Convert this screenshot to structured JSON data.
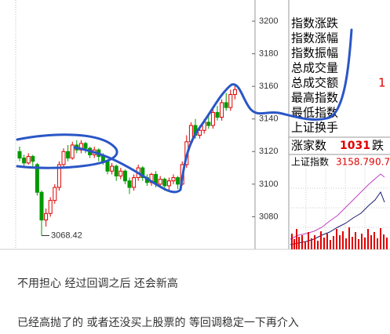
{
  "chart_data": {
    "type": "candlestick",
    "open": [
      3120,
      3116,
      3113,
      3117,
      3112,
      3095,
      3078,
      3082,
      3090,
      3098,
      3112,
      3120,
      3116,
      3124,
      3121,
      3125,
      3122,
      3118,
      3121,
      3117,
      3114,
      3108,
      3111,
      3105,
      3108,
      3102,
      3098,
      3104,
      3110,
      3104,
      3101,
      3106,
      3100,
      3103,
      3099,
      3102,
      3104,
      3100,
      3112,
      3126,
      3136,
      3130,
      3133,
      3138,
      3136,
      3144,
      3141,
      3150,
      3147,
      3155
    ],
    "close": [
      3116,
      3113,
      3117,
      3114,
      3095,
      3078,
      3082,
      3090,
      3098,
      3112,
      3120,
      3116,
      3124,
      3121,
      3125,
      3122,
      3118,
      3121,
      3117,
      3114,
      3108,
      3111,
      3105,
      3108,
      3102,
      3098,
      3104,
      3110,
      3104,
      3101,
      3106,
      3100,
      3103,
      3099,
      3102,
      3104,
      3100,
      3112,
      3126,
      3136,
      3130,
      3133,
      3138,
      3136,
      3144,
      3141,
      3150,
      3147,
      3155,
      3158
    ],
    "high": [
      3123,
      3118,
      3119,
      3118,
      3113,
      3096,
      3085,
      3092,
      3100,
      3114,
      3122,
      3124,
      3126,
      3127,
      3127,
      3126,
      3123,
      3123,
      3122,
      3119,
      3115,
      3113,
      3112,
      3110,
      3109,
      3104,
      3106,
      3112,
      3111,
      3106,
      3107,
      3108,
      3105,
      3104,
      3104,
      3106,
      3105,
      3114,
      3130,
      3138,
      3140,
      3136,
      3140,
      3142,
      3146,
      3148,
      3152,
      3156,
      3158,
      3161
    ],
    "low": [
      3114,
      3111,
      3112,
      3110,
      3093,
      3068.42,
      3074,
      3080,
      3088,
      3096,
      3110,
      3114,
      3115,
      3119,
      3119,
      3119,
      3116,
      3116,
      3114,
      3112,
      3106,
      3106,
      3102,
      3103,
      3100,
      3094,
      3096,
      3102,
      3102,
      3099,
      3099,
      3098,
      3098,
      3096,
      3096,
      3100,
      3097,
      3099,
      3110,
      3124,
      3128,
      3128,
      3131,
      3134,
      3134,
      3139,
      3139,
      3145,
      3145,
      3152
    ],
    "up_color": "#e00000",
    "down_color": "#009900",
    "ylim": [
      3060,
      3213
    ],
    "yticks": [
      3080,
      3100,
      3120,
      3140,
      3160,
      3180,
      3200
    ]
  },
  "panel": {
    "labels": [
      "指数涨跌",
      "指数涨幅",
      "指数振幅",
      "总成交量",
      "总成交额",
      "最高指数",
      "最低指数",
      "上证换手"
    ],
    "partial_value": 1,
    "rise_label": "涨家数",
    "rise_count": 1031,
    "fall_label": "跌",
    "index_label": "上证指数",
    "index_value": 3158.79,
    "index_change": 0.7
  },
  "post": {
    "lines": [
      "不用担心 经过回调之后 还会新高",
      "已经高抛了的 或者还没买上股票的 等回调稳定一下再介入"
    ]
  }
}
